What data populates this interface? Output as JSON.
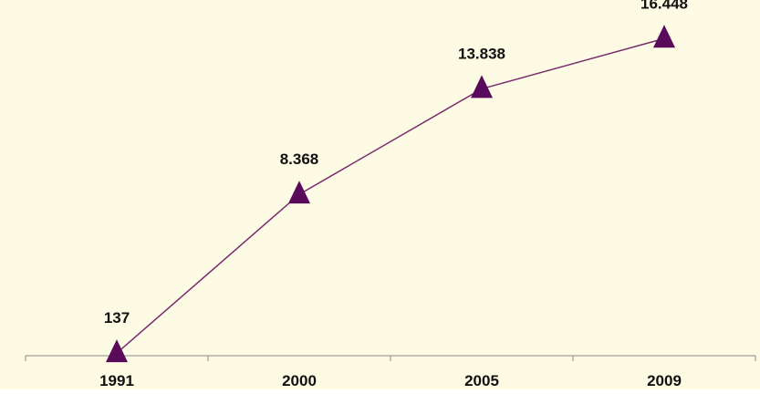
{
  "chart_data": {
    "type": "line",
    "categories": [
      "1991",
      "2000",
      "2005",
      "2009"
    ],
    "series": [
      {
        "values": [
          137,
          8368,
          13838,
          16448
        ],
        "labels": [
          "137",
          "8.368",
          "13.838",
          "16.448"
        ],
        "marker": "triangle",
        "line_color": "#7b2a6e",
        "marker_color": "#5a0a5a"
      }
    ],
    "title": "",
    "xlabel": "",
    "ylabel": "",
    "ylim": [
      0,
      17500
    ],
    "grid": false,
    "legend": "none",
    "background_color": "#fdfbe3"
  }
}
